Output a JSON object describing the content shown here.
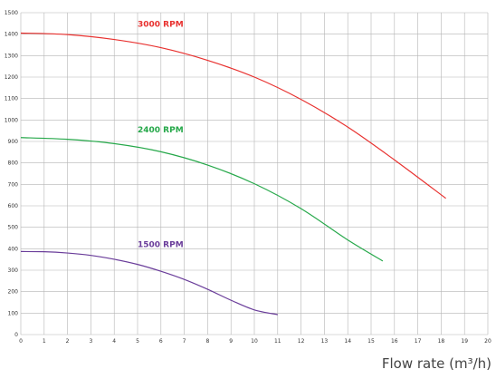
{
  "chart_data": {
    "type": "line",
    "title": "",
    "xlabel": "Flow rate (m³/h)",
    "ylabel": "",
    "xlim": [
      0,
      20
    ],
    "ylim": [
      0,
      1500
    ],
    "x_ticks": [
      0,
      1,
      2,
      3,
      4,
      5,
      6,
      7,
      8,
      9,
      10,
      11,
      12,
      13,
      14,
      15,
      16,
      17,
      18,
      19,
      20
    ],
    "y_ticks": [
      0,
      100,
      200,
      300,
      400,
      500,
      600,
      700,
      800,
      900,
      1000,
      1100,
      1200,
      1300,
      1400,
      1500
    ],
    "grid": true,
    "legend": "inline labels",
    "series": [
      {
        "name": "3000 RPM",
        "color": "#e8312f",
        "x": [
          0,
          2,
          4,
          6,
          8,
          10,
          12,
          14,
          16,
          18.2
        ],
        "y": [
          1405,
          1398,
          1375,
          1337,
          1278,
          1200,
          1096,
          967,
          814,
          635
        ]
      },
      {
        "name": "2400 RPM",
        "color": "#26a84a",
        "x": [
          0,
          2,
          4,
          6,
          8,
          10,
          12,
          14,
          15.5
        ],
        "y": [
          918,
          910,
          890,
          852,
          790,
          703,
          587,
          441,
          343
        ]
      },
      {
        "name": "1500 RPM",
        "color": "#6a3d9a",
        "x": [
          0,
          1,
          2,
          3,
          4,
          5,
          6,
          7,
          8,
          9,
          10,
          11
        ],
        "y": [
          387,
          386,
          380,
          369,
          351,
          327,
          295,
          257,
          211,
          160,
          115,
          93
        ]
      }
    ]
  }
}
